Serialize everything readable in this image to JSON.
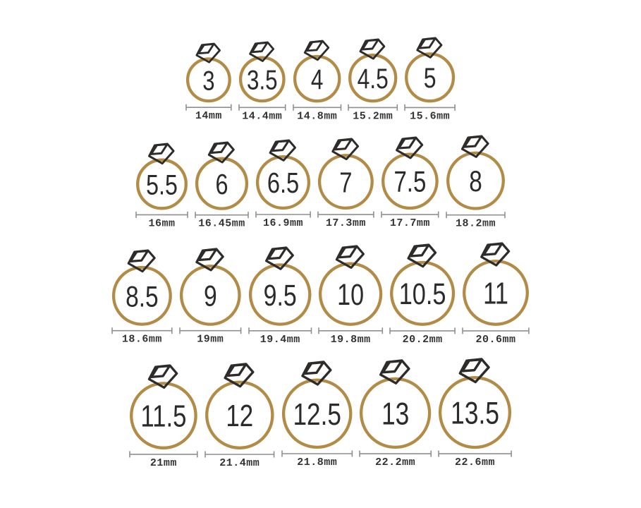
{
  "colors": {
    "background": "#ffffff",
    "ring_gold": "#b28c46",
    "diamond_outline": "#2d2c2b",
    "size_text": "#2b2b2b",
    "measure_line": "#8f8f8f",
    "measure_text": "#333333"
  },
  "chart_data": {
    "type": "table",
    "description": "US ring size chart: ring size number with inner diameter in millimeters",
    "columns": [
      "ring_size",
      "diameter"
    ],
    "ring_sizes": [
      3,
      3.5,
      4,
      4.5,
      5,
      5.5,
      6,
      6.5,
      7,
      7.5,
      8,
      8.5,
      9,
      9.5,
      10,
      10.5,
      11,
      11.5,
      12,
      12.5,
      13,
      13.5
    ],
    "diameters_mm": [
      14,
      14.4,
      14.8,
      15.2,
      15.6,
      16,
      16.45,
      16.9,
      17.3,
      17.7,
      18.2,
      18.6,
      19,
      19.4,
      19.8,
      20.2,
      20.6,
      21,
      21.4,
      21.8,
      22.2,
      22.6
    ],
    "diameter_labels": [
      "14mm",
      "14.4mm",
      "14.8mm",
      "15.2mm",
      "15.6mm",
      "16mm",
      "16.45mm",
      "16.9mm",
      "17.3mm",
      "17.7mm",
      "18.2mm",
      "18.6mm",
      "19mm",
      "19.4mm",
      "19.8mm",
      "20.2mm",
      "20.6mm",
      "21mm",
      "21.4mm",
      "21.8mm",
      "22.2mm",
      "22.6mm"
    ],
    "rows_layout": [
      5,
      6,
      6,
      5
    ]
  },
  "rows": [
    [
      {
        "size": "3",
        "diameter_label": "14mm",
        "diameter_mm": 14
      },
      {
        "size": "3.5",
        "diameter_label": "14.4mm",
        "diameter_mm": 14.4
      },
      {
        "size": "4",
        "diameter_label": "14.8mm",
        "diameter_mm": 14.8
      },
      {
        "size": "4.5",
        "diameter_label": "15.2mm",
        "diameter_mm": 15.2
      },
      {
        "size": "5",
        "diameter_label": "15.6mm",
        "diameter_mm": 15.6
      }
    ],
    [
      {
        "size": "5.5",
        "diameter_label": "16mm",
        "diameter_mm": 16
      },
      {
        "size": "6",
        "diameter_label": "16.45mm",
        "diameter_mm": 16.45
      },
      {
        "size": "6.5",
        "diameter_label": "16.9mm",
        "diameter_mm": 16.9
      },
      {
        "size": "7",
        "diameter_label": "17.3mm",
        "diameter_mm": 17.3
      },
      {
        "size": "7.5",
        "diameter_label": "17.7mm",
        "diameter_mm": 17.7
      },
      {
        "size": "8",
        "diameter_label": "18.2mm",
        "diameter_mm": 18.2
      }
    ],
    [
      {
        "size": "8.5",
        "diameter_label": "18.6mm",
        "diameter_mm": 18.6
      },
      {
        "size": "9",
        "diameter_label": "19mm",
        "diameter_mm": 19
      },
      {
        "size": "9.5",
        "diameter_label": "19.4mm",
        "diameter_mm": 19.4
      },
      {
        "size": "10",
        "diameter_label": "19.8mm",
        "diameter_mm": 19.8
      },
      {
        "size": "10.5",
        "diameter_label": "20.2mm",
        "diameter_mm": 20.2
      },
      {
        "size": "11",
        "diameter_label": "20.6mm",
        "diameter_mm": 20.6
      }
    ],
    [
      {
        "size": "11.5",
        "diameter_label": "21mm",
        "diameter_mm": 21
      },
      {
        "size": "12",
        "diameter_label": "21.4mm",
        "diameter_mm": 21.4
      },
      {
        "size": "12.5",
        "diameter_label": "21.8mm",
        "diameter_mm": 21.8
      },
      {
        "size": "13",
        "diameter_label": "22.2mm",
        "diameter_mm": 22.2
      },
      {
        "size": "13.5",
        "diameter_label": "22.6mm",
        "diameter_mm": 22.6
      }
    ]
  ]
}
